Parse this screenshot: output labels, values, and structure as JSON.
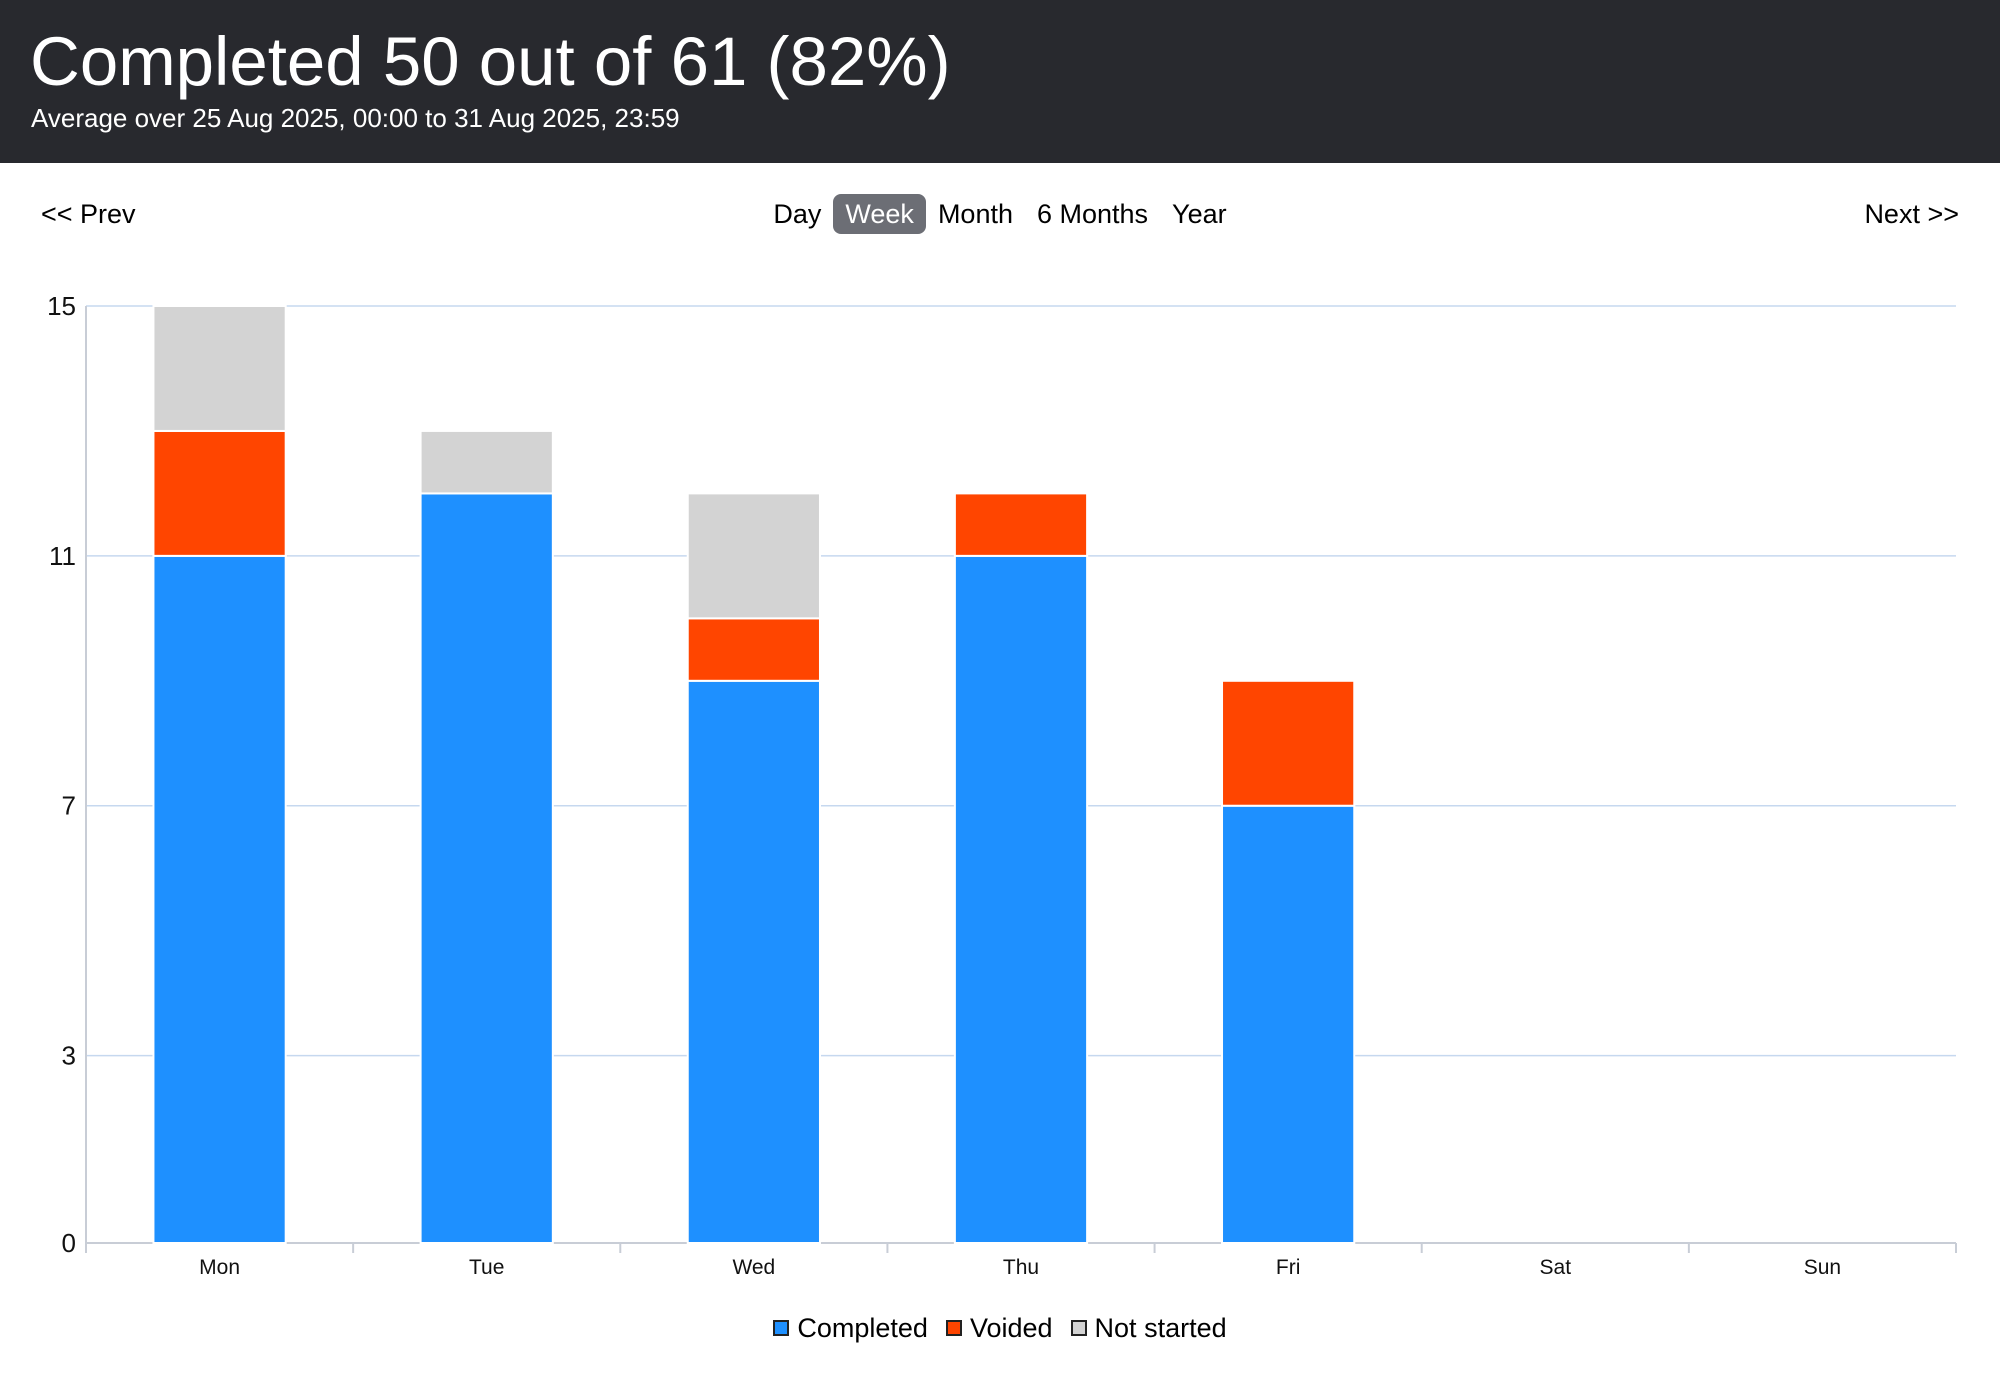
{
  "header": {
    "title": "Completed 50 out of 61 (82%)",
    "subtitle": "Average over 25 Aug 2025, 00:00 to 31 Aug 2025, 23:59"
  },
  "nav": {
    "prev_label": "<< Prev",
    "next_label": "Next >>",
    "periods": [
      {
        "label": "Day",
        "active": false
      },
      {
        "label": "Week",
        "active": true
      },
      {
        "label": "Month",
        "active": false
      },
      {
        "label": "6 Months",
        "active": false
      },
      {
        "label": "Year",
        "active": false
      }
    ]
  },
  "colors": {
    "completed": "#1e90ff",
    "voided": "#ff4500",
    "not_started": "#d3d3d3",
    "grid": "#c6d8ef",
    "axis": "#c8cdd6"
  },
  "chart_data": {
    "type": "bar",
    "stacked": true,
    "categories": [
      "Mon",
      "Tue",
      "Wed",
      "Thu",
      "Fri",
      "Sat",
      "Sun"
    ],
    "series": [
      {
        "name": "Completed",
        "color": "#1e90ff",
        "values": [
          11,
          12,
          9,
          11,
          7,
          0,
          0
        ]
      },
      {
        "name": "Voided",
        "color": "#ff4500",
        "values": [
          2,
          0,
          1,
          1,
          2,
          0,
          0
        ]
      },
      {
        "name": "Not started",
        "color": "#d3d3d3",
        "values": [
          2,
          1,
          2,
          0,
          0,
          0,
          0
        ]
      }
    ],
    "yticks": [
      0,
      3,
      7,
      11,
      15
    ],
    "ylim": [
      0,
      15
    ],
    "grid": true,
    "legend_position": "bottom"
  }
}
